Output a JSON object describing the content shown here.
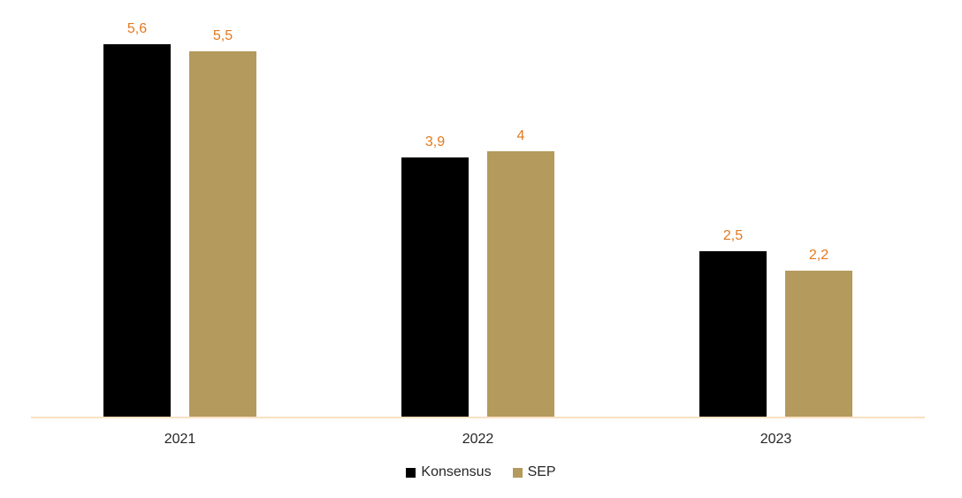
{
  "chart_data": {
    "type": "bar",
    "title": "",
    "xlabel": "",
    "ylabel": "",
    "categories": [
      "2021",
      "2022",
      "2023"
    ],
    "series": [
      {
        "name": "Konsensus",
        "color": "#000000",
        "values": [
          5.6,
          3.9,
          2.5
        ],
        "labels": [
          "5,6",
          "3,9",
          "2,5"
        ]
      },
      {
        "name": "SEP",
        "color": "#B49A5C",
        "values": [
          5.5,
          4.0,
          2.2
        ],
        "labels": [
          "5,5",
          "4",
          "2,2"
        ]
      }
    ],
    "ylim": [
      0,
      6
    ],
    "grid": false,
    "y_axis_visible": false,
    "legend_position": "bottom",
    "data_label_color": "#E2791F",
    "axis_line_color": "#FAE0C3",
    "x_label_color": "#262626"
  }
}
